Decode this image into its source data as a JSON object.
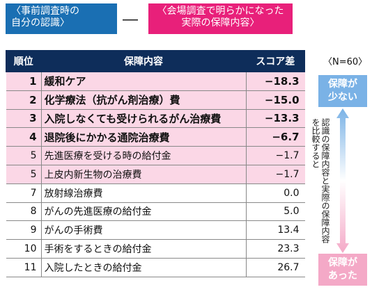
{
  "header": {
    "prior_recognition": "〈事前調査時の\n自分の認識〉",
    "minus": "―",
    "actual_content": "〈会場調査で明らかになった\n実際の保障内容〉"
  },
  "sample_size": "〈N=60〉",
  "table": {
    "columns": [
      "順位",
      "保障内容",
      "スコア差"
    ],
    "rows": [
      {
        "rank": "1",
        "item": "緩和ケア",
        "score": "−18.3"
      },
      {
        "rank": "2",
        "item": "化学療法（抗がん剤治療）費",
        "score": "−15.0"
      },
      {
        "rank": "3",
        "item": "入院しなくても受けられるがん治療費",
        "score": "−13.3"
      },
      {
        "rank": "4",
        "item": "退院後にかかる通院治療費",
        "score": "−6.7"
      },
      {
        "rank": "5",
        "item": "先進医療を受ける時の給付金",
        "score": "−1.7"
      },
      {
        "rank": "5",
        "item": "上皮内新生物の治療費",
        "score": "−1.7"
      },
      {
        "rank": "7",
        "item": "放射線治療費",
        "score": "0.0"
      },
      {
        "rank": "8",
        "item": "がんの先進医療の給付金",
        "score": "5.0"
      },
      {
        "rank": "9",
        "item": "がんの手術費",
        "score": "13.4"
      },
      {
        "rank": "10",
        "item": "手術をするときの給付金",
        "score": "23.3"
      },
      {
        "rank": "11",
        "item": "入院したときの給付金",
        "score": "26.7"
      }
    ]
  },
  "side": {
    "less_label": "保障が\n少ない",
    "more_label": "保障が\nあった",
    "compare_note": "認識の保障内容と実際の保障内容を比較すると"
  },
  "colors": {
    "prior_box": "#1a6fb3",
    "actual_box": "#e8207a",
    "table_header": "#0e2d5a",
    "highlight_row": "#fbd7e6",
    "less_box": "#7ab2e6",
    "more_box": "#f4a9c7"
  }
}
